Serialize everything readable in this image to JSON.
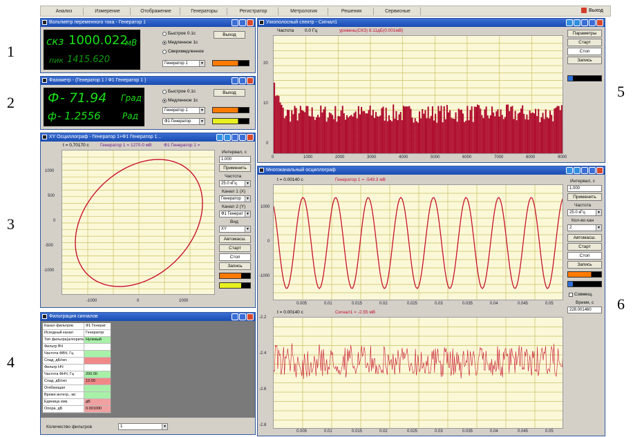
{
  "menubar": {
    "items": [
      "Анализ",
      "Измерение",
      "Отображение",
      "Генераторы",
      "Регистратор",
      "Метрология",
      "Решения",
      "Сервисные"
    ],
    "exit": "Выход"
  },
  "labels": [
    "1",
    "2",
    "3",
    "4",
    "5",
    "6"
  ],
  "voltmeter": {
    "title": "Вольтметр переменного тока - Генератор 1",
    "rms_label": "скз",
    "rms_value": "1000.022",
    "unit": "мВ",
    "peak_label": "пик",
    "peak_value": "1415.620",
    "radio": [
      "Быстрое 0.1с",
      "Медленное 1с",
      "Сверхмедленное"
    ],
    "exit_button": "Выход",
    "generator": "Генератор 1"
  },
  "phasemeter": {
    "title": "Фазометр - (Генератор 1 / Ф1 Генератор 1 )",
    "phi_label": "Ф",
    "phi_value": "- 71.94",
    "phi_unit": "Град",
    "phi2_label": "ф",
    "phi2_value": "- 1.2556",
    "phi2_unit": "Рад",
    "radio": [
      "Быстрое 0.1с",
      "Медленное 1с"
    ],
    "exit_button": "Выход",
    "generator1": "Генератор 1",
    "generator2": "Ф1 Генератор"
  },
  "xy_scope": {
    "title": "XY Осциллограф - Генератор 1+Ф1 Генератор 1...",
    "readout_t": "t = 0,70170 с",
    "readout_g1": "Генератор 1 = 1270.0 мВ",
    "readout_g2": "Ф1 Генератор 1 =",
    "y_ticks": [
      "1000",
      "500",
      "0",
      "-500",
      "-1000"
    ],
    "x_ticks": [
      "-1000",
      "0",
      "1000"
    ],
    "side": {
      "interval_label": "Интервал, с",
      "interval_value": "1.000",
      "apply": "Применить",
      "freq_label": "Частота",
      "freq_value": "25.0 кГц",
      "ch1_label": "Канал 1 (X)",
      "ch1_value": "Генератор",
      "ch2_label": "Канал 2 (Y)",
      "ch2_value": "Ф1 Генерат",
      "view_label": "Вид",
      "view_value": "XY",
      "autoscale": "Автомасш.",
      "start": "Старт",
      "stop": "Стоп",
      "record": "Запись"
    }
  },
  "filter": {
    "title": "Фильтрация сигналов",
    "rows": [
      [
        "Канал фильтров",
        "Ф1 Генерат"
      ],
      [
        "Исходный канал",
        "Генератор"
      ],
      [
        "Тип фильтра(алгоритм)",
        "Нулевый"
      ],
      [
        "Фильтр ВЧ",
        ""
      ],
      [
        "Частота ФВЧ, Гц",
        ""
      ],
      [
        "Спад, дБ/окт.",
        ""
      ],
      [
        "Фильтр НЧ",
        ""
      ],
      [
        "Частота ФНЧ, Гц",
        "200.00"
      ],
      [
        "Спад, дБ/окт.",
        "12.00"
      ],
      [
        "Огибающая",
        ""
      ],
      [
        "Время интегр., мс",
        ""
      ],
      [
        "Единица изм.",
        "дБ"
      ],
      [
        "Опора, дБ",
        "0.001000"
      ]
    ],
    "count_label": "Количество фильтров",
    "count_value": "1"
  },
  "spectrum": {
    "title": "Узкополосный спектр - Сигнал1",
    "readout_freq_label": "Частота",
    "readout_freq_value": "0.0 Гц",
    "readout_level": "уровень(СКЗ)   8.11дБ(0.001мВ)",
    "y_ticks": [
      "20",
      "10",
      "0"
    ],
    "x_ticks": [
      "0",
      "1000",
      "2000",
      "3000",
      "4000",
      "5000",
      "6000",
      "7000",
      "8000",
      "9000"
    ],
    "side": [
      "Параметры",
      "Старт",
      "Стоп",
      "Запись"
    ]
  },
  "multiscope": {
    "title": "Многоканальный осциллограф",
    "top_readout_t": "t = 0.00140 с",
    "top_readout_v": "Генератор 1 = -549.3 мВ",
    "top_y_ticks": [
      "1000",
      "0",
      "-1000"
    ],
    "x_ticks": [
      "0.005",
      "0.01",
      "0.015",
      "0.02",
      "0.025",
      "0.03",
      "0.035",
      "0.04",
      "0.045",
      "0.05"
    ],
    "bottom_readout_t": "t = 0.00140 с",
    "bottom_readout_v": "Сигнал1 = -2.55 мВ",
    "bottom_y_ticks": [
      "-2.2",
      "-2.4",
      "-2.6",
      "-2.8"
    ],
    "side": {
      "interval_label": "Интервал, с",
      "interval_value": "1.000",
      "apply": "Применить",
      "freq_label": "Частота",
      "freq_value": "25.0 кГц",
      "count_label": "Кол-во кан",
      "count_value": "2",
      "autoscale": "Автомасш.",
      "start": "Старт",
      "stop": "Стоп",
      "record": "Запись",
      "sync_label": "Совмещ.",
      "time_label": "Время, с",
      "time_value": "228.001460"
    }
  },
  "colors": {
    "titlebar": "#1a4bb0",
    "lcd_green": "#18e018",
    "plot_bg": "#fbf8d8",
    "grid": "#c8c060",
    "trace_red": "#c8102e",
    "spectrum_fill": "#b01030",
    "orange": "#ff7a00",
    "yellow": "#e8f020"
  }
}
